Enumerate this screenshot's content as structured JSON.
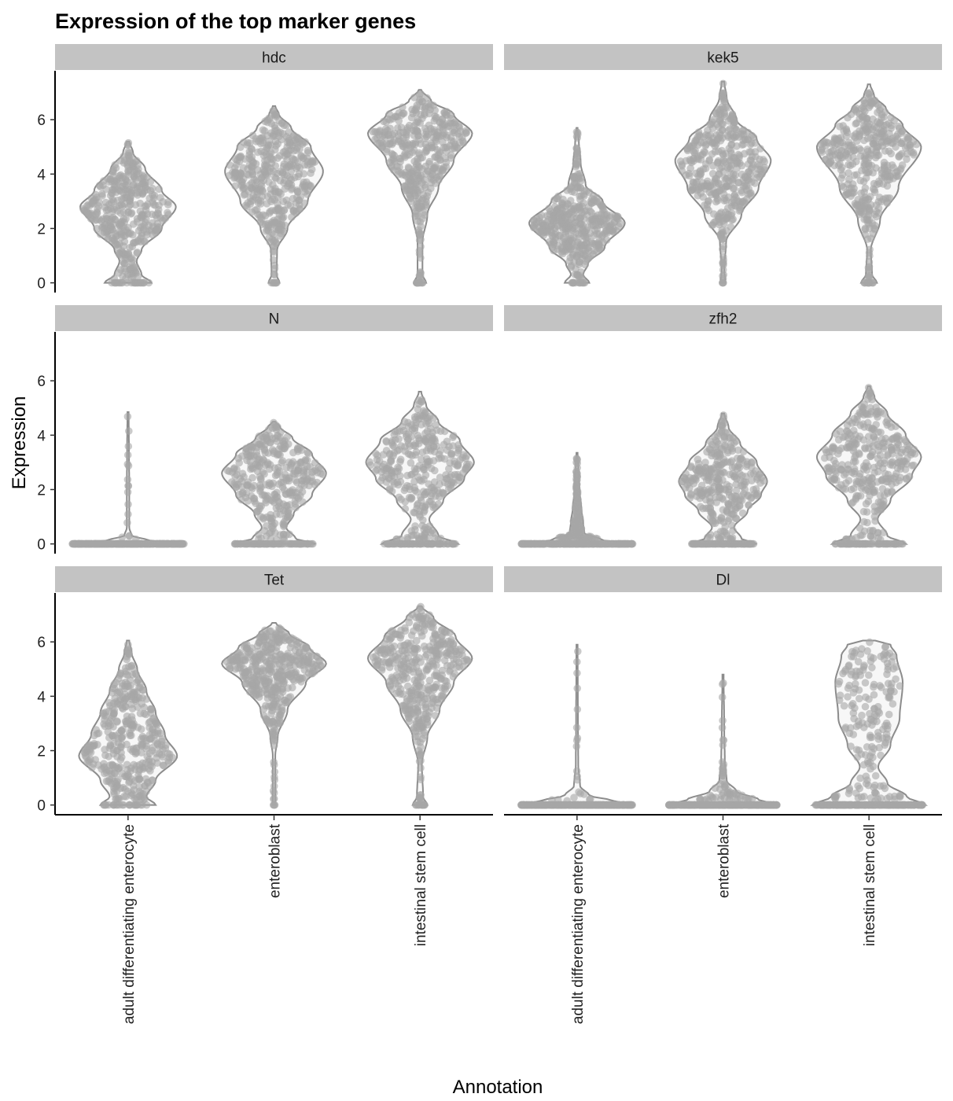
{
  "chart_data": {
    "type": "violin",
    "title": "Expression of the top marker genes",
    "xlabel": "Annotation",
    "ylabel": "Expression",
    "ylim": [
      -0.3,
      7.8
    ],
    "yticks": [
      0,
      2,
      4,
      6
    ],
    "grid": false,
    "categories": [
      "adult differentiating enterocyte",
      "enteroblast",
      "intestinal stem cell"
    ],
    "panels": [
      {
        "gene": "hdc",
        "violins": [
          {
            "category": "adult differentiating enterocyte",
            "max": 5.2,
            "zero_fraction": 0.06,
            "profile": [
              [
                0,
                0.38
              ],
              [
                0.3,
                0.22
              ],
              [
                0.8,
                0.14
              ],
              [
                1.2,
                0.22
              ],
              [
                2.0,
                0.55
              ],
              [
                2.8,
                0.78
              ],
              [
                3.4,
                0.55
              ],
              [
                4.2,
                0.28
              ],
              [
                4.8,
                0.08
              ],
              [
                5.2,
                0.02
              ]
            ]
          },
          {
            "category": "enteroblast",
            "max": 6.5,
            "zero_fraction": 0.02,
            "profile": [
              [
                0,
                0.09
              ],
              [
                0.3,
                0.04
              ],
              [
                1.2,
                0.05
              ],
              [
                2.0,
                0.22
              ],
              [
                3.0,
                0.55
              ],
              [
                4.1,
                0.8
              ],
              [
                5.0,
                0.6
              ],
              [
                5.7,
                0.28
              ],
              [
                6.2,
                0.08
              ],
              [
                6.5,
                0.02
              ]
            ]
          },
          {
            "category": "intestinal stem cell",
            "max": 7.1,
            "zero_fraction": 0.03,
            "profile": [
              [
                0,
                0.1
              ],
              [
                0.3,
                0.04
              ],
              [
                1.5,
                0.04
              ],
              [
                2.5,
                0.12
              ],
              [
                3.5,
                0.3
              ],
              [
                4.5,
                0.55
              ],
              [
                5.5,
                0.85
              ],
              [
                6.2,
                0.55
              ],
              [
                6.7,
                0.18
              ],
              [
                7.1,
                0.02
              ]
            ]
          }
        ]
      },
      {
        "gene": "kek5",
        "violins": [
          {
            "category": "adult differentiating enterocyte",
            "max": 5.7,
            "zero_fraction": 0.03,
            "profile": [
              [
                0,
                0.2
              ],
              [
                0.3,
                0.1
              ],
              [
                0.7,
                0.18
              ],
              [
                1.3,
                0.45
              ],
              [
                2.2,
                0.78
              ],
              [
                3.0,
                0.42
              ],
              [
                3.6,
                0.14
              ],
              [
                4.4,
                0.06
              ],
              [
                5.2,
                0.03
              ],
              [
                5.7,
                0.01
              ]
            ]
          },
          {
            "category": "enteroblast",
            "max": 7.4,
            "zero_fraction": 0.01,
            "profile": [
              [
                0,
                0.04
              ],
              [
                0.5,
                0.02
              ],
              [
                1.5,
                0.05
              ],
              [
                2.5,
                0.3
              ],
              [
                3.5,
                0.58
              ],
              [
                4.5,
                0.78
              ],
              [
                5.3,
                0.55
              ],
              [
                6.0,
                0.22
              ],
              [
                6.8,
                0.06
              ],
              [
                7.4,
                0.02
              ]
            ]
          },
          {
            "category": "intestinal stem cell",
            "max": 7.3,
            "zero_fraction": 0.03,
            "profile": [
              [
                0,
                0.13
              ],
              [
                0.3,
                0.05
              ],
              [
                1.2,
                0.03
              ],
              [
                2.3,
                0.18
              ],
              [
                3.5,
                0.48
              ],
              [
                5.0,
                0.85
              ],
              [
                5.8,
                0.55
              ],
              [
                6.4,
                0.28
              ],
              [
                6.9,
                0.08
              ],
              [
                7.3,
                0.02
              ]
            ]
          }
        ]
      },
      {
        "gene": "N",
        "violins": [
          {
            "category": "adult differentiating enterocyte",
            "max": 4.85,
            "zero_fraction": 0.96,
            "profile": [
              [
                0,
                0.95
              ],
              [
                0.15,
                0.3
              ],
              [
                0.3,
                0.06
              ],
              [
                0.6,
                0.02
              ],
              [
                2.0,
                0.02
              ],
              [
                3.5,
                0.015
              ],
              [
                4.85,
                0.01
              ]
            ]
          },
          {
            "category": "enteroblast",
            "max": 4.5,
            "zero_fraction": 0.2,
            "profile": [
              [
                0,
                0.68
              ],
              [
                0.2,
                0.35
              ],
              [
                0.6,
                0.2
              ],
              [
                1.1,
                0.32
              ],
              [
                1.8,
                0.62
              ],
              [
                2.6,
                0.85
              ],
              [
                3.3,
                0.62
              ],
              [
                3.9,
                0.3
              ],
              [
                4.3,
                0.1
              ],
              [
                4.5,
                0.02
              ]
            ]
          },
          {
            "category": "intestinal stem cell",
            "max": 5.6,
            "zero_fraction": 0.2,
            "profile": [
              [
                0,
                0.62
              ],
              [
                0.3,
                0.3
              ],
              [
                0.9,
                0.15
              ],
              [
                1.6,
                0.38
              ],
              [
                2.4,
                0.72
              ],
              [
                3.0,
                0.88
              ],
              [
                3.8,
                0.65
              ],
              [
                4.5,
                0.3
              ],
              [
                5.1,
                0.1
              ],
              [
                5.6,
                0.02
              ]
            ]
          }
        ]
      },
      {
        "gene": "zfh2",
        "violins": [
          {
            "category": "adult differentiating enterocyte",
            "max": 3.35,
            "zero_fraction": 0.6,
            "profile": [
              [
                0,
                0.95
              ],
              [
                0.15,
                0.4
              ],
              [
                0.4,
                0.12
              ],
              [
                0.8,
                0.1
              ],
              [
                1.3,
                0.07
              ],
              [
                2.0,
                0.04
              ],
              [
                2.8,
                0.02
              ],
              [
                3.35,
                0.01
              ]
            ]
          },
          {
            "category": "enteroblast",
            "max": 4.8,
            "zero_fraction": 0.25,
            "profile": [
              [
                0,
                0.55
              ],
              [
                0.2,
                0.3
              ],
              [
                0.6,
                0.18
              ],
              [
                1.2,
                0.4
              ],
              [
                1.8,
                0.62
              ],
              [
                2.3,
                0.72
              ],
              [
                3.0,
                0.55
              ],
              [
                3.7,
                0.28
              ],
              [
                4.3,
                0.09
              ],
              [
                4.8,
                0.02
              ]
            ]
          },
          {
            "category": "intestinal stem cell",
            "max": 5.8,
            "zero_fraction": 0.2,
            "profile": [
              [
                0,
                0.6
              ],
              [
                0.3,
                0.3
              ],
              [
                0.9,
                0.14
              ],
              [
                1.6,
                0.35
              ],
              [
                2.5,
                0.7
              ],
              [
                3.2,
                0.85
              ],
              [
                4.0,
                0.6
              ],
              [
                4.8,
                0.3
              ],
              [
                5.4,
                0.09
              ],
              [
                5.8,
                0.02
              ]
            ]
          }
        ]
      },
      {
        "gene": "Tet",
        "violins": [
          {
            "category": "adult differentiating enterocyte",
            "max": 6.05,
            "zero_fraction": 0.06,
            "profile": [
              [
                0,
                0.45
              ],
              [
                0.3,
                0.3
              ],
              [
                0.9,
                0.45
              ],
              [
                1.8,
                0.8
              ],
              [
                2.6,
                0.6
              ],
              [
                3.4,
                0.45
              ],
              [
                4.2,
                0.3
              ],
              [
                5.0,
                0.15
              ],
              [
                5.6,
                0.06
              ],
              [
                6.05,
                0.02
              ]
            ]
          },
          {
            "category": "enteroblast",
            "max": 6.7,
            "zero_fraction": 0.01,
            "profile": [
              [
                0,
                0.02
              ],
              [
                0.5,
                0.02
              ],
              [
                1.8,
                0.02
              ],
              [
                2.5,
                0.06
              ],
              [
                3.5,
                0.22
              ],
              [
                4.5,
                0.52
              ],
              [
                5.2,
                0.85
              ],
              [
                5.8,
                0.58
              ],
              [
                6.3,
                0.25
              ],
              [
                6.7,
                0.03
              ]
            ]
          },
          {
            "category": "intestinal stem cell",
            "max": 7.3,
            "zero_fraction": 0.03,
            "profile": [
              [
                0,
                0.12
              ],
              [
                0.3,
                0.05
              ],
              [
                1.5,
                0.03
              ],
              [
                2.5,
                0.12
              ],
              [
                3.5,
                0.32
              ],
              [
                4.5,
                0.55
              ],
              [
                5.4,
                0.85
              ],
              [
                6.2,
                0.58
              ],
              [
                6.9,
                0.22
              ],
              [
                7.3,
                0.03
              ]
            ]
          }
        ]
      },
      {
        "gene": "Dl",
        "violins": [
          {
            "category": "adult differentiating enterocyte",
            "max": 5.9,
            "zero_fraction": 0.95,
            "profile": [
              [
                0,
                0.95
              ],
              [
                0.15,
                0.6
              ],
              [
                0.35,
                0.2
              ],
              [
                0.7,
                0.05
              ],
              [
                1.5,
                0.02
              ],
              [
                3.0,
                0.015
              ],
              [
                5.9,
                0.01
              ]
            ]
          },
          {
            "category": "enteroblast",
            "max": 4.8,
            "zero_fraction": 0.85,
            "profile": [
              [
                0,
                0.92
              ],
              [
                0.2,
                0.58
              ],
              [
                0.5,
                0.22
              ],
              [
                0.9,
                0.06
              ],
              [
                1.6,
                0.03
              ],
              [
                2.8,
                0.02
              ],
              [
                4.8,
                0.01
              ]
            ]
          },
          {
            "category": "intestinal stem cell",
            "max": 6.05,
            "zero_fraction": 0.55,
            "profile": [
              [
                0,
                0.92
              ],
              [
                0.3,
                0.62
              ],
              [
                0.8,
                0.3
              ],
              [
                1.4,
                0.15
              ],
              [
                2.2,
                0.35
              ],
              [
                3.2,
                0.5
              ],
              [
                4.5,
                0.55
              ],
              [
                5.5,
                0.45
              ],
              [
                5.9,
                0.35
              ],
              [
                6.05,
                0.1
              ]
            ]
          }
        ]
      }
    ]
  }
}
